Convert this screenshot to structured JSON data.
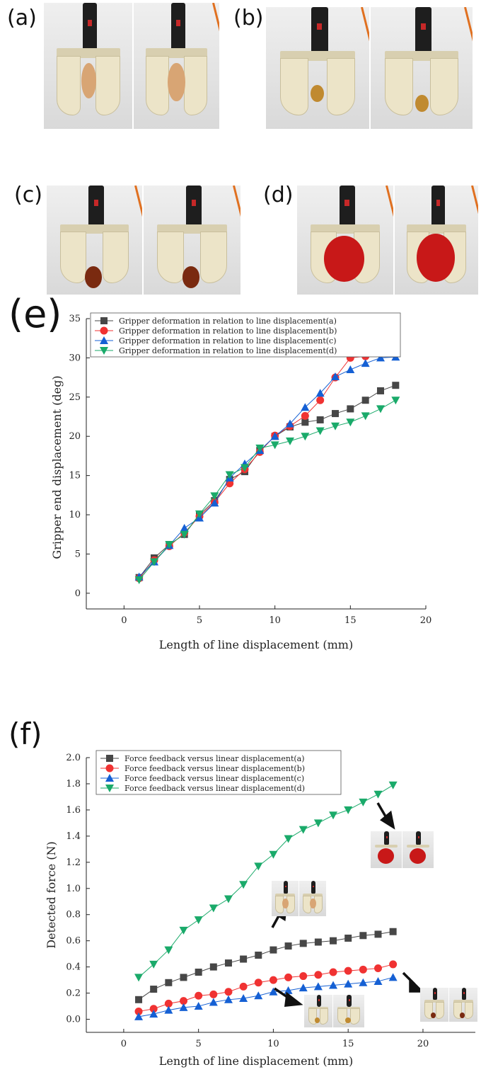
{
  "panels": {
    "a": "(a)",
    "b": "(b)",
    "c": "(c)",
    "d": "(d)",
    "e": "(e)",
    "f": "(f)"
  },
  "photos": {
    "a": {
      "object": "egg",
      "color": "#d8a574"
    },
    "b": {
      "object": "small ball",
      "color": "#c08a30"
    },
    "c": {
      "object": "small fruit",
      "color": "#7a2a10"
    },
    "d": {
      "object": "tomato",
      "color": "#c81818"
    }
  },
  "chart_data": [
    {
      "type": "line",
      "xlabel": "Length of line displacement (mm)",
      "ylabel": "Gripper end displacement (deg)",
      "xlim": [
        -2.5,
        20
      ],
      "ylim": [
        -2,
        35
      ],
      "xticks": [
        "0",
        "5",
        "10",
        "15",
        "20"
      ],
      "yticks": [
        "0",
        "5",
        "10",
        "15",
        "20",
        "25",
        "30",
        "35"
      ],
      "legend_position": "top-left",
      "x": [
        1,
        2,
        3,
        4,
        5,
        6,
        7,
        8,
        9,
        10,
        11,
        12,
        13,
        14,
        15,
        16,
        17,
        18
      ],
      "series": [
        {
          "name": "Gripper deformation in relation to line displacement(a)",
          "color": "#474747",
          "marker": "square",
          "values": [
            2.0,
            4.5,
            6.2,
            7.5,
            10.0,
            11.8,
            14.5,
            15.5,
            18.2,
            20.0,
            21.2,
            21.8,
            22.1,
            22.9,
            23.5,
            24.6,
            25.8,
            26.5
          ]
        },
        {
          "name": "Gripper deformation in relation to line displacement(b)",
          "color": "#f03232",
          "marker": "circle",
          "values": [
            1.9,
            4.2,
            6.0,
            7.7,
            9.8,
            11.6,
            14.0,
            15.8,
            18.0,
            20.1,
            21.3,
            22.6,
            24.6,
            27.5,
            30.0,
            30.2,
            30.7,
            30.9
          ]
        },
        {
          "name": "Gripper deformation in relation to line displacement(c)",
          "color": "#1560d4",
          "marker": "triangle-up",
          "values": [
            2.1,
            4.0,
            6.1,
            8.3,
            9.6,
            11.5,
            14.7,
            16.5,
            18.2,
            20.0,
            21.6,
            23.7,
            25.5,
            27.6,
            28.5,
            29.3,
            30.0,
            30.1
          ]
        },
        {
          "name": "Gripper deformation in relation to line displacement(d)",
          "color": "#1aaa6a",
          "marker": "triangle-down",
          "values": [
            1.7,
            4.0,
            6.2,
            7.5,
            10.1,
            12.4,
            15.1,
            16.0,
            18.5,
            18.9,
            19.4,
            20.0,
            20.7,
            21.3,
            21.8,
            22.6,
            23.5,
            24.6
          ]
        }
      ]
    },
    {
      "type": "line",
      "xlabel": "Length of line displacement (mm)",
      "ylabel": "Detected force (N)",
      "xlim": [
        -2.5,
        23.5
      ],
      "ylim": [
        -0.1,
        2.0
      ],
      "xticks": [
        "0",
        "5",
        "10",
        "15",
        "20"
      ],
      "yticks": [
        "0.0",
        "0.2",
        "0.4",
        "0.6",
        "0.8",
        "1.0",
        "1.2",
        "1.4",
        "1.6",
        "1.8",
        "2.0"
      ],
      "legend_position": "top-left",
      "x": [
        1,
        2,
        3,
        4,
        5,
        6,
        7,
        8,
        9,
        10,
        11,
        12,
        13,
        14,
        15,
        16,
        17,
        18
      ],
      "series": [
        {
          "name": "Force feedback versus linear displacement(a)",
          "color": "#474747",
          "marker": "square",
          "values": [
            0.15,
            0.23,
            0.28,
            0.32,
            0.36,
            0.4,
            0.43,
            0.46,
            0.49,
            0.53,
            0.56,
            0.58,
            0.59,
            0.6,
            0.62,
            0.64,
            0.65,
            0.67
          ]
        },
        {
          "name": "Force feedback versus linear displacement(b)",
          "color": "#f03232",
          "marker": "circle",
          "values": [
            0.06,
            0.08,
            0.12,
            0.14,
            0.18,
            0.19,
            0.21,
            0.25,
            0.28,
            0.3,
            0.32,
            0.33,
            0.34,
            0.36,
            0.37,
            0.38,
            0.39,
            0.42
          ]
        },
        {
          "name": "Force feedback versus linear displacement(c)",
          "color": "#1560d4",
          "marker": "triangle-up",
          "values": [
            0.02,
            0.04,
            0.07,
            0.09,
            0.1,
            0.13,
            0.15,
            0.16,
            0.18,
            0.21,
            0.22,
            0.24,
            0.25,
            0.26,
            0.27,
            0.28,
            0.29,
            0.32
          ]
        },
        {
          "name": "Force feedback versus linear displacement(d)",
          "color": "#1aaa6a",
          "marker": "triangle-down",
          "values": [
            0.32,
            0.42,
            0.53,
            0.68,
            0.76,
            0.85,
            0.92,
            1.03,
            1.17,
            1.26,
            1.38,
            1.45,
            1.5,
            1.56,
            1.6,
            1.66,
            1.72,
            1.79
          ]
        }
      ]
    }
  ]
}
